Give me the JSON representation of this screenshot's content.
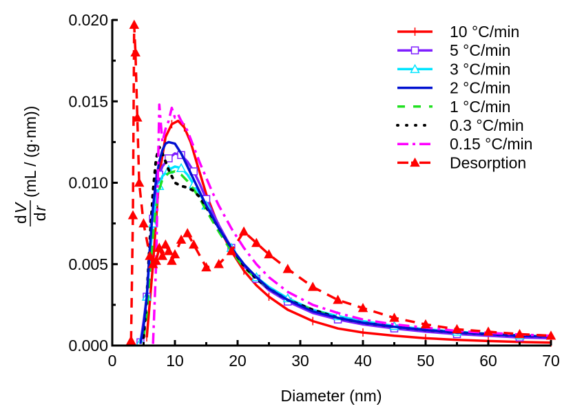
{
  "chart_data": {
    "type": "line",
    "title": "",
    "xlabel": "Diameter (nm)",
    "ylabel_num": "d V",
    "ylabel_den": "d r",
    "ylabel_unit": "(mL / (g·nm))",
    "xlim": [
      0,
      70
    ],
    "ylim": [
      0,
      0.02
    ],
    "xticks": [
      0,
      10,
      20,
      30,
      40,
      50,
      60,
      70
    ],
    "xtick_labels": [
      "0",
      "10",
      "20",
      "30",
      "40",
      "50",
      "60",
      "70"
    ],
    "yticks": [
      0,
      0.005,
      0.01,
      0.015,
      0.02
    ],
    "ytick_labels": [
      "0.000",
      "0.005",
      "0.010",
      "0.015",
      "0.020"
    ],
    "grid": false,
    "legend_position": "top-right",
    "series": [
      {
        "name": "10 °C/min",
        "color": "#ff0000",
        "style": "solid",
        "marker": "plus",
        "x": [
          5.5,
          6.5,
          7.5,
          8.5,
          9.5,
          10.5,
          11.5,
          12.5,
          13.5,
          15,
          17,
          19,
          21,
          23,
          25,
          28,
          32,
          36,
          40,
          45,
          50,
          55,
          60,
          65,
          70
        ],
        "y": [
          0.0005,
          0.005,
          0.0105,
          0.0128,
          0.0136,
          0.0138,
          0.0134,
          0.0125,
          0.0112,
          0.0093,
          0.0073,
          0.0058,
          0.0046,
          0.0037,
          0.003,
          0.0022,
          0.0015,
          0.00105,
          0.0008,
          0.0006,
          0.00045,
          0.00035,
          0.00028,
          0.00022,
          0.00018
        ]
      },
      {
        "name": "5 °C/min",
        "color": "#7f1fff",
        "style": "solid",
        "marker": "square",
        "x": [
          4.5,
          5,
          5.5,
          6,
          6.5,
          7,
          7.5,
          8,
          9,
          10,
          11,
          12,
          13,
          14,
          15,
          17,
          19,
          21,
          23,
          25,
          28,
          32,
          36,
          40,
          45,
          50,
          55,
          60,
          65,
          70
        ],
        "y": [
          0.0002,
          0.0015,
          0.003,
          0.0055,
          0.0078,
          0.0095,
          0.0105,
          0.011,
          0.0115,
          0.0118,
          0.0117,
          0.0113,
          0.0107,
          0.0099,
          0.009,
          0.0074,
          0.006,
          0.0049,
          0.0041,
          0.0034,
          0.0027,
          0.002,
          0.0016,
          0.0013,
          0.00105,
          0.00085,
          0.0007,
          0.0006,
          0.0005,
          0.00045
        ]
      },
      {
        "name": "3 °C/min",
        "color": "#00e5ff",
        "style": "solid",
        "marker": "triangle",
        "x": [
          4.5,
          5,
          5.5,
          6,
          6.5,
          7,
          7.5,
          8,
          9,
          10,
          11,
          12,
          13,
          14,
          15,
          17,
          19,
          21,
          23,
          25,
          28,
          32,
          36,
          40,
          45,
          50,
          55,
          60,
          65,
          70
        ],
        "y": [
          0.0002,
          0.0012,
          0.003,
          0.0055,
          0.0075,
          0.009,
          0.0098,
          0.0104,
          0.0108,
          0.011,
          0.0109,
          0.0105,
          0.0099,
          0.0093,
          0.0086,
          0.0072,
          0.006,
          0.005,
          0.0042,
          0.0036,
          0.0029,
          0.0022,
          0.0018,
          0.0015,
          0.0012,
          0.001,
          0.00085,
          0.00072,
          0.00062,
          0.00055
        ]
      },
      {
        "name": "2 °C/min",
        "color": "#0010d0",
        "style": "solid",
        "marker": "none",
        "x": [
          4.5,
          5,
          5.5,
          6,
          6.5,
          7,
          7.5,
          8,
          8.5,
          9,
          10,
          11,
          12,
          13,
          14,
          15,
          17,
          19,
          21,
          23,
          25,
          28,
          32,
          36,
          40,
          45,
          50,
          55,
          60,
          65,
          70
        ],
        "y": [
          0.0001,
          0.0012,
          0.003,
          0.006,
          0.0085,
          0.0102,
          0.0113,
          0.012,
          0.0124,
          0.0125,
          0.0124,
          0.0118,
          0.011,
          0.0102,
          0.0094,
          0.0086,
          0.0072,
          0.006,
          0.005,
          0.0042,
          0.0035,
          0.0028,
          0.0021,
          0.0017,
          0.0014,
          0.00115,
          0.00095,
          0.0008,
          0.0007,
          0.0006,
          0.00055
        ]
      },
      {
        "name": "1 °C/min",
        "color": "#20e020",
        "style": "dashed",
        "marker": "none",
        "x": [
          5,
          5.5,
          6,
          6.5,
          7,
          7.5,
          8,
          9,
          10,
          11,
          12,
          13,
          14,
          15,
          17,
          19,
          21,
          23,
          25,
          28,
          32,
          36,
          40,
          45,
          50,
          55,
          60,
          65,
          70
        ],
        "y": [
          0.0005,
          0.002,
          0.0045,
          0.0068,
          0.0085,
          0.0096,
          0.0102,
          0.0106,
          0.0107,
          0.0105,
          0.0101,
          0.0096,
          0.009,
          0.0083,
          0.007,
          0.0058,
          0.0048,
          0.0041,
          0.0035,
          0.0028,
          0.0022,
          0.0017,
          0.0014,
          0.00115,
          0.00095,
          0.0008,
          0.0007,
          0.0006,
          0.00055
        ]
      },
      {
        "name": "0.3 °C/min",
        "color": "#000000",
        "style": "dotted",
        "marker": "none",
        "x": [
          5,
          5.5,
          6,
          6.5,
          7,
          7.5,
          8,
          9,
          10,
          11,
          12,
          13,
          14,
          15,
          17,
          19,
          21,
          23,
          25,
          28,
          32,
          36,
          40,
          45,
          50,
          55,
          60,
          65,
          70
        ],
        "y": [
          0.0005,
          0.003,
          0.0065,
          0.0095,
          0.0115,
          0.0122,
          0.0118,
          0.0108,
          0.01,
          0.0098,
          0.0097,
          0.0095,
          0.0091,
          0.0085,
          0.0072,
          0.006,
          0.0049,
          0.0041,
          0.0035,
          0.0028,
          0.0022,
          0.0017,
          0.0014,
          0.00115,
          0.00095,
          0.0008,
          0.0007,
          0.0006,
          0.00055
        ]
      },
      {
        "name": "0.15 °C/min",
        "color": "#ff00ff",
        "style": "dashdot",
        "marker": "none",
        "x": [
          6.5,
          7,
          7.5,
          8,
          8.5,
          9,
          9.5,
          10,
          10.5,
          11,
          12,
          13,
          14,
          15,
          16,
          17,
          19,
          21,
          23,
          25,
          28,
          32,
          36,
          40,
          45,
          50,
          55,
          60,
          65,
          70
        ],
        "y": [
          0.0001,
          0.005,
          0.0148,
          0.0125,
          0.0133,
          0.0138,
          0.0146,
          0.014,
          0.0142,
          0.0138,
          0.0132,
          0.0122,
          0.0112,
          0.0103,
          0.0094,
          0.0086,
          0.0072,
          0.006,
          0.005,
          0.0042,
          0.0033,
          0.0025,
          0.002,
          0.0016,
          0.0013,
          0.0011,
          0.0009,
          0.00078,
          0.00068,
          0.0006
        ]
      },
      {
        "name": "Desorption",
        "color": "#ff0000",
        "style": "dashed",
        "marker": "triangle",
        "x": [
          3,
          3.3,
          3.5,
          3.7,
          4,
          4.3,
          5,
          6,
          6.5,
          7,
          7.5,
          8,
          8.5,
          9,
          9.5,
          10,
          11,
          12,
          13,
          15,
          17,
          19,
          21,
          23,
          25,
          28,
          32,
          36,
          40,
          45,
          50,
          55,
          60,
          65,
          70
        ],
        "y": [
          0.0003,
          0.008,
          0.0197,
          0.018,
          0.014,
          0.01,
          0.0075,
          0.0055,
          0.005,
          0.0052,
          0.006,
          0.0055,
          0.0062,
          0.0058,
          0.0052,
          0.0056,
          0.0065,
          0.0069,
          0.0062,
          0.0048,
          0.005,
          0.0058,
          0.007,
          0.0063,
          0.0056,
          0.0047,
          0.0036,
          0.0028,
          0.0023,
          0.0017,
          0.0013,
          0.001,
          0.00085,
          0.0007,
          0.0006
        ]
      }
    ]
  }
}
